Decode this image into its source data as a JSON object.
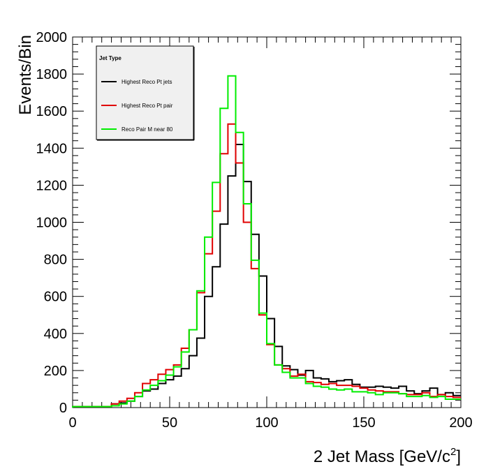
{
  "chart_data": {
    "type": "line",
    "xlabel": "2 Jet Mass [GeV/c",
    "xlabel_sup": "2",
    "xlabel_end": "]",
    "ylabel": "Events/Bin",
    "xlim": [
      0,
      200
    ],
    "ylim": [
      0,
      2000
    ],
    "x_ticks": [
      "0",
      "50",
      "100",
      "150",
      "200"
    ],
    "y_ticks": [
      "0",
      "200",
      "400",
      "600",
      "800",
      "1000",
      "1200",
      "1400",
      "1600",
      "1800",
      "2000"
    ],
    "grid": false,
    "legend": {
      "title": "Jet Type",
      "position": "top-left"
    },
    "bin_width": 4,
    "bin_edges_start": [
      0,
      4,
      8,
      12,
      16,
      20,
      24,
      28,
      32,
      36,
      40,
      44,
      48,
      52,
      56,
      60,
      64,
      68,
      72,
      76,
      80,
      84,
      88,
      92,
      96,
      100,
      104,
      108,
      112,
      116,
      120,
      124,
      128,
      132,
      136,
      140,
      144,
      148,
      152,
      156,
      160,
      164,
      168,
      172,
      176,
      180,
      184,
      188,
      192,
      196
    ],
    "series": [
      {
        "name": "Highest Reco Pt jets",
        "color": "#000000",
        "values": [
          5,
          5,
          5,
          5,
          5,
          20,
          25,
          35,
          60,
          90,
          100,
          130,
          150,
          170,
          210,
          280,
          375,
          600,
          760,
          990,
          1250,
          1420,
          1220,
          935,
          710,
          480,
          330,
          225,
          205,
          175,
          200,
          160,
          155,
          140,
          145,
          150,
          125,
          110,
          110,
          115,
          110,
          105,
          115,
          90,
          75,
          90,
          105,
          70,
          80,
          65
        ]
      },
      {
        "name": "Highest Reco Pt pair",
        "color": "#e00000",
        "values": [
          5,
          5,
          5,
          5,
          5,
          20,
          35,
          50,
          80,
          130,
          150,
          180,
          205,
          230,
          320,
          420,
          620,
          830,
          1060,
          1370,
          1530,
          1320,
          1000,
          750,
          500,
          340,
          230,
          210,
          170,
          180,
          140,
          135,
          125,
          130,
          120,
          120,
          115,
          105,
          95,
          90,
          85,
          85,
          75,
          70,
          70,
          80,
          60,
          70,
          60,
          55
        ]
      },
      {
        "name": "Reco Pair M near 80",
        "color": "#00ee00",
        "values": [
          5,
          5,
          5,
          5,
          5,
          10,
          20,
          35,
          60,
          95,
          120,
          145,
          175,
          220,
          300,
          420,
          630,
          920,
          1215,
          1615,
          1790,
          1485,
          1100,
          795,
          510,
          345,
          230,
          190,
          160,
          160,
          130,
          115,
          110,
          100,
          95,
          100,
          85,
          85,
          80,
          70,
          80,
          80,
          75,
          60,
          60,
          65,
          55,
          60,
          45,
          45
        ]
      }
    ]
  }
}
